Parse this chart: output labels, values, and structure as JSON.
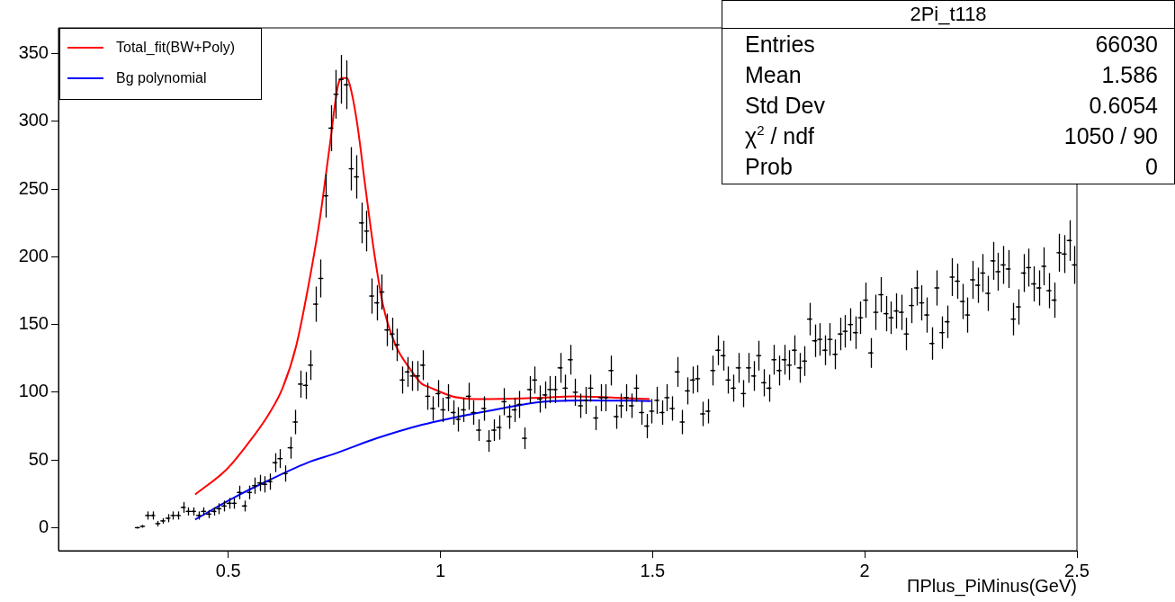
{
  "chart_data": {
    "type": "scatter",
    "title": "2Pi_t118",
    "xlabel": "ΠPlus_PiMinus(GeV)",
    "annotations": [
      "Entries",
      "66030",
      "Mean",
      "1.586",
      "Std Dev",
      "0.6054",
      "χ$^{2}$ / ndf",
      "1050 / 90",
      "Prob",
      "0"
    ],
    "xlim": [
      0.1,
      2.5
    ],
    "xticks": [
      0.5,
      1,
      1.5,
      2,
      2.5
    ],
    "ylim": [
      -17,
      369
    ],
    "yticks": [
      0,
      50,
      100,
      150,
      200,
      250,
      300,
      350
    ],
    "grid": false,
    "legend": "top left",
    "series": [
      {
        "type": "scatter",
        "color": "#000000",
        "marker": "cross",
        "x": [
          0.286,
          0.298,
          0.31,
          0.322,
          0.334,
          0.346,
          0.358,
          0.37,
          0.382,
          0.394,
          0.406,
          0.418,
          0.43,
          0.442,
          0.454,
          0.466,
          0.478,
          0.49,
          0.502,
          0.514,
          0.526,
          0.538,
          0.55,
          0.562,
          0.574,
          0.586,
          0.598,
          0.61,
          0.622,
          0.634,
          0.646,
          0.658,
          0.67,
          0.682,
          0.694,
          0.706,
          0.718,
          0.73,
          0.742,
          0.754,
          0.766,
          0.778,
          0.79,
          0.802,
          0.814,
          0.826,
          0.838,
          0.85,
          0.862,
          0.874,
          0.886,
          0.898,
          0.91,
          0.922,
          0.934,
          0.946,
          0.958,
          0.97,
          0.982,
          0.994,
          1.006,
          1.018,
          1.03,
          1.042,
          1.054,
          1.066,
          1.078,
          1.09,
          1.102,
          1.114,
          1.126,
          1.138,
          1.15,
          1.162,
          1.174,
          1.186,
          1.198,
          1.21,
          1.222,
          1.234,
          1.246,
          1.258,
          1.27,
          1.282,
          1.294,
          1.306,
          1.318,
          1.33,
          1.342,
          1.354,
          1.366,
          1.378,
          1.39,
          1.402,
          1.414,
          1.426,
          1.438,
          1.45,
          1.462,
          1.474,
          1.486,
          1.498,
          1.51,
          1.522,
          1.534,
          1.546,
          1.558,
          1.57,
          1.582,
          1.594,
          1.606,
          1.618,
          1.63,
          1.642,
          1.654,
          1.666,
          1.678,
          1.69,
          1.702,
          1.714,
          1.726,
          1.738,
          1.75,
          1.762,
          1.774,
          1.786,
          1.798,
          1.81,
          1.822,
          1.834,
          1.846,
          1.858,
          1.87,
          1.882,
          1.894,
          1.906,
          1.918,
          1.93,
          1.942,
          1.954,
          1.966,
          1.978,
          1.99,
          2.002,
          2.014,
          2.026,
          2.038,
          2.05,
          2.062,
          2.074,
          2.086,
          2.098,
          2.11,
          2.122,
          2.134,
          2.146,
          2.158,
          2.17,
          2.182,
          2.194,
          2.206,
          2.218,
          2.23,
          2.242,
          2.254,
          2.266,
          2.278,
          2.29,
          2.302,
          2.314,
          2.326,
          2.338,
          2.35,
          2.362,
          2.374,
          2.386,
          2.398,
          2.41,
          2.422,
          2.434,
          2.446,
          2.458,
          2.47,
          2.482,
          2.494
        ],
        "values": [
          0,
          1,
          9,
          9,
          3,
          5,
          7,
          9,
          9,
          15,
          12,
          12,
          9,
          12,
          10,
          12,
          14,
          16,
          18,
          18,
          26,
          16,
          26,
          31,
          33,
          32,
          34,
          48,
          51,
          40,
          59,
          78,
          106,
          105,
          120,
          165,
          184,
          245,
          295,
          320,
          331,
          327,
          265,
          259,
          225,
          219,
          171,
          166,
          174,
          146,
          143,
          135,
          109,
          115,
          112,
          112,
          120,
          97,
          88,
          99,
          87,
          96,
          85,
          80,
          87,
          97,
          85,
          72,
          88,
          64,
          72,
          74,
          93,
          82,
          87,
          91,
          66,
          102,
          109,
          95,
          98,
          102,
          102,
          118,
          103,
          124,
          100,
          90,
          94,
          103,
          81,
          96,
          96,
          116,
          82,
          90,
          96,
          90,
          103,
          85,
          75,
          86,
          94,
          85,
          96,
          88,
          115,
          78,
          101,
          109,
          110,
          84,
          86,
          116,
          131,
          127,
          109,
          103,
          118,
          99,
          118,
          112,
          127,
          107,
          103,
          124,
          116,
          124,
          120,
          131,
          118,
          123,
          154,
          138,
          139,
          131,
          139,
          128,
          143,
          145,
          150,
          144,
          155,
          168,
          129,
          159,
          172,
          158,
          155,
          160,
          159,
          143,
          164,
          177,
          166,
          157,
          136,
          177,
          144,
          152,
          185,
          182,
          167,
          157,
          183,
          179,
          188,
          173,
          197,
          189,
          194,
          191,
          154,
          163,
          188,
          192,
          180,
          177,
          193,
          175,
          168,
          203,
          202,
          212,
          194
        ],
        "errors": [
          0,
          1,
          3,
          3,
          2,
          2,
          3,
          3,
          3,
          4,
          3,
          3,
          3,
          3,
          3,
          3,
          4,
          4,
          4,
          4,
          5,
          4,
          5,
          6,
          6,
          6,
          6,
          7,
          7,
          6,
          8,
          9,
          10,
          10,
          11,
          13,
          14,
          16,
          17,
          18,
          18,
          18,
          16,
          16,
          15,
          15,
          13,
          13,
          13,
          12,
          12,
          12,
          10,
          11,
          11,
          11,
          11,
          10,
          9,
          10,
          9,
          10,
          9,
          9,
          9,
          10,
          9,
          8,
          9,
          8,
          8,
          9,
          10,
          9,
          9,
          10,
          8,
          10,
          10,
          10,
          10,
          10,
          10,
          11,
          10,
          11,
          10,
          9,
          10,
          10,
          9,
          10,
          10,
          11,
          9,
          9,
          10,
          9,
          10,
          9,
          9,
          9,
          10,
          9,
          10,
          9,
          11,
          9,
          10,
          10,
          10,
          9,
          9,
          11,
          11,
          11,
          10,
          10,
          11,
          10,
          11,
          11,
          11,
          10,
          10,
          11,
          11,
          11,
          11,
          11,
          11,
          11,
          12,
          12,
          12,
          11,
          12,
          11,
          12,
          12,
          12,
          12,
          12,
          13,
          11,
          13,
          13,
          13,
          12,
          13,
          13,
          12,
          13,
          13,
          13,
          13,
          12,
          13,
          12,
          12,
          14,
          13,
          13,
          13,
          14,
          13,
          14,
          13,
          14,
          14,
          14,
          14,
          12,
          13,
          14,
          14,
          13,
          13,
          14,
          13,
          13,
          14,
          14,
          15,
          14
        ],
        "xerrors": [
          0.006,
          0.006,
          0.006,
          0.006,
          0.006,
          0.006,
          0.006,
          0.006,
          0.006,
          0.006,
          0.006,
          0.006,
          0.006,
          0.006,
          0.006,
          0.006,
          0.006,
          0.006,
          0.006,
          0.006,
          0.006,
          0.006,
          0.006,
          0.006,
          0.006,
          0.006,
          0.006,
          0.006,
          0.006,
          0.006,
          0.006,
          0.006,
          0.006,
          0.006,
          0.006,
          0.006,
          0.006,
          0.006,
          0.006,
          0.006,
          0.006,
          0.006,
          0.006,
          0.006,
          0.006,
          0.006,
          0.006,
          0.006,
          0.006,
          0.006,
          0.006,
          0.006,
          0.006,
          0.006,
          0.006,
          0.006,
          0.006,
          0.006,
          0.006,
          0.006,
          0.006,
          0.006,
          0.006,
          0.006,
          0.006,
          0.006,
          0.006,
          0.006,
          0.006,
          0.006,
          0.006,
          0.006,
          0.006,
          0.006,
          0.006,
          0.006,
          0.006,
          0.006,
          0.006,
          0.006,
          0.006,
          0.006,
          0.006,
          0.006,
          0.006,
          0.006,
          0.006,
          0.006,
          0.006,
          0.006,
          0.006,
          0.006,
          0.006,
          0.006,
          0.006,
          0.006,
          0.006,
          0.006,
          0.006,
          0.006,
          0.006,
          0.006,
          0.006,
          0.006,
          0.006,
          0.006,
          0.006,
          0.006,
          0.006,
          0.006,
          0.006,
          0.006,
          0.006,
          0.006,
          0.006,
          0.006,
          0.006,
          0.006,
          0.006,
          0.006,
          0.006,
          0.006,
          0.006,
          0.006,
          0.006,
          0.006,
          0.006,
          0.006,
          0.006,
          0.006,
          0.006,
          0.006,
          0.006,
          0.006,
          0.006,
          0.006,
          0.006,
          0.006,
          0.006,
          0.006,
          0.006,
          0.006,
          0.006,
          0.006,
          0.006,
          0.006,
          0.006,
          0.006,
          0.006,
          0.006,
          0.006,
          0.006,
          0.006,
          0.006,
          0.006,
          0.006,
          0.006,
          0.006,
          0.006,
          0.006,
          0.006,
          0.006,
          0.006,
          0.006,
          0.006,
          0.006,
          0.006,
          0.006,
          0.006,
          0.006,
          0.006,
          0.006,
          0.006,
          0.006,
          0.006,
          0.006,
          0.006,
          0.006,
          0.006,
          0.006,
          0.006,
          0.006,
          0.006,
          0.006,
          0.006
        ]
      },
      {
        "type": "line",
        "name": "Total_fit(BW+Poly)",
        "color": "#ff0000",
        "x": [
          0.422,
          0.496,
          0.539,
          0.596,
          0.628,
          0.66,
          0.688,
          0.716,
          0.738,
          0.759,
          0.77,
          0.78,
          0.791,
          0.805,
          0.823,
          0.844,
          0.865,
          0.894,
          0.929,
          0.957,
          0.972,
          1.028,
          1.078,
          1.241,
          1.312,
          1.411,
          1.493
        ],
        "values": [
          24.5,
          43,
          59,
          84,
          103,
          134,
          177,
          228,
          279,
          327,
          332,
          332,
          321,
          296,
          252,
          203,
          164,
          135,
          117,
          106,
          104,
          97,
          95,
          96,
          97,
          96,
          95
        ]
      },
      {
        "type": "line",
        "name": "Bg polynomial",
        "color": "#0000ff",
        "x": [
          0.422,
          0.518,
          0.589,
          0.695,
          0.745,
          0.85,
          0.957,
          1.028,
          1.135,
          1.241,
          1.347,
          1.496
        ],
        "values": [
          6,
          23,
          34,
          49,
          54,
          66,
          76,
          81,
          87.5,
          93,
          94,
          93.5
        ]
      }
    ]
  }
}
